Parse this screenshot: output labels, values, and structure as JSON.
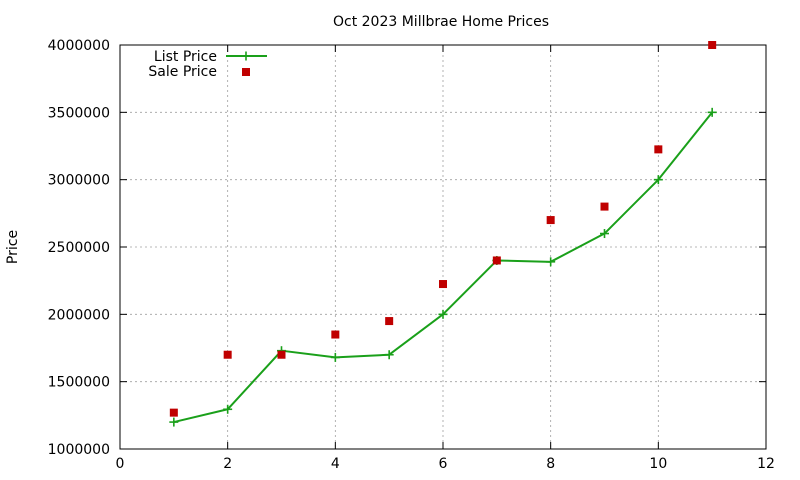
{
  "chart_data": {
    "type": "line",
    "title": "Oct 2023 Millbrae Home Prices",
    "xlabel": "",
    "ylabel": "Price",
    "xlim": [
      0,
      12
    ],
    "ylim": [
      1000000,
      4000000
    ],
    "xticks": [
      0,
      2,
      4,
      6,
      8,
      10,
      12
    ],
    "yticks": [
      1000000,
      1500000,
      2000000,
      2500000,
      3000000,
      3500000,
      4000000
    ],
    "grid": true,
    "legend_position": "top-left",
    "series": [
      {
        "name": "List Price",
        "style": "lines+points",
        "color": "#1aa01a",
        "marker": "plus",
        "x": [
          1,
          2,
          3,
          4,
          5,
          6,
          7,
          8,
          9,
          10,
          11
        ],
        "y": [
          1200000,
          1295000,
          1730000,
          1680000,
          1700000,
          2000000,
          2400000,
          2390000,
          2600000,
          3000000,
          3500000
        ]
      },
      {
        "name": "Sale Price",
        "style": "points",
        "color": "#c00000",
        "marker": "square",
        "x": [
          1,
          2,
          3,
          4,
          5,
          6,
          7,
          8,
          9,
          10,
          11
        ],
        "y": [
          1270000,
          1700000,
          1700000,
          1850000,
          1950000,
          2225000,
          2400000,
          2700000,
          2800000,
          3225000,
          4000000
        ]
      }
    ]
  }
}
